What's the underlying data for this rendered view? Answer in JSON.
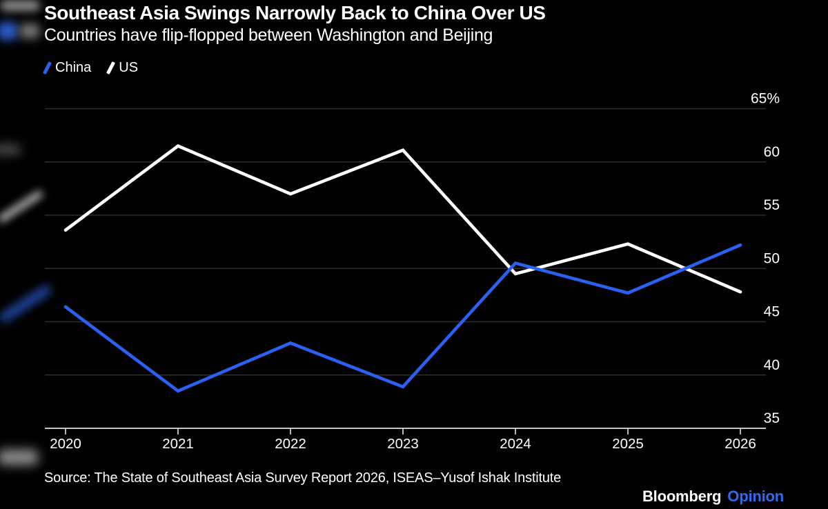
{
  "header": {
    "title": "Southeast Asia Swings Narrowly Back to China Over US",
    "subtitle": "Countries have flip-flopped between Washington and Beijing"
  },
  "legend": [
    {
      "label": "China",
      "color": "#2962F2",
      "icon": "slash-icon"
    },
    {
      "label": "US",
      "color": "#FFFFFF",
      "icon": "slash-icon"
    }
  ],
  "chart_data": {
    "type": "line",
    "title": "Southeast Asia Swings Narrowly Back to China Over US",
    "subtitle": "Countries have flip-flopped between Washington and Beijing",
    "x": [
      2020,
      2021,
      2022,
      2023,
      2024,
      2025,
      2026
    ],
    "xtick_labels": [
      "2020",
      "2021",
      "2022",
      "2023",
      "2024",
      "2025",
      "2026"
    ],
    "series": [
      {
        "name": "US",
        "color": "#FFFFFF",
        "values": [
          53.6,
          61.5,
          57.0,
          61.1,
          49.5,
          52.3,
          47.8
        ]
      },
      {
        "name": "China",
        "color": "#2962F2",
        "values": [
          46.4,
          38.5,
          43.0,
          38.9,
          50.5,
          47.7,
          52.2
        ]
      }
    ],
    "unit": "%",
    "ylim": [
      35,
      65
    ],
    "yticks": [
      35,
      40,
      45,
      50,
      55,
      60,
      65
    ],
    "ytick_labels": [
      "35",
      "40",
      "45",
      "50",
      "55",
      "60",
      "65%"
    ],
    "grid": "horizontal",
    "legend_position": "top-left"
  },
  "footer": {
    "source": "Source: The State of Southeast Asia Survey Report 2026, ISEAS–Yusof Ishak Institute",
    "brand": "Bloomberg",
    "brand_suffix": "Opinion"
  },
  "colors": {
    "background": "#000000",
    "china_blue": "#2962F2",
    "us_white": "#FFFFFF",
    "grid": "#2F2F2F",
    "axis": "#C8C8C8",
    "text": "#FFFFFF",
    "opinion_blue": "#2F6BF2"
  }
}
